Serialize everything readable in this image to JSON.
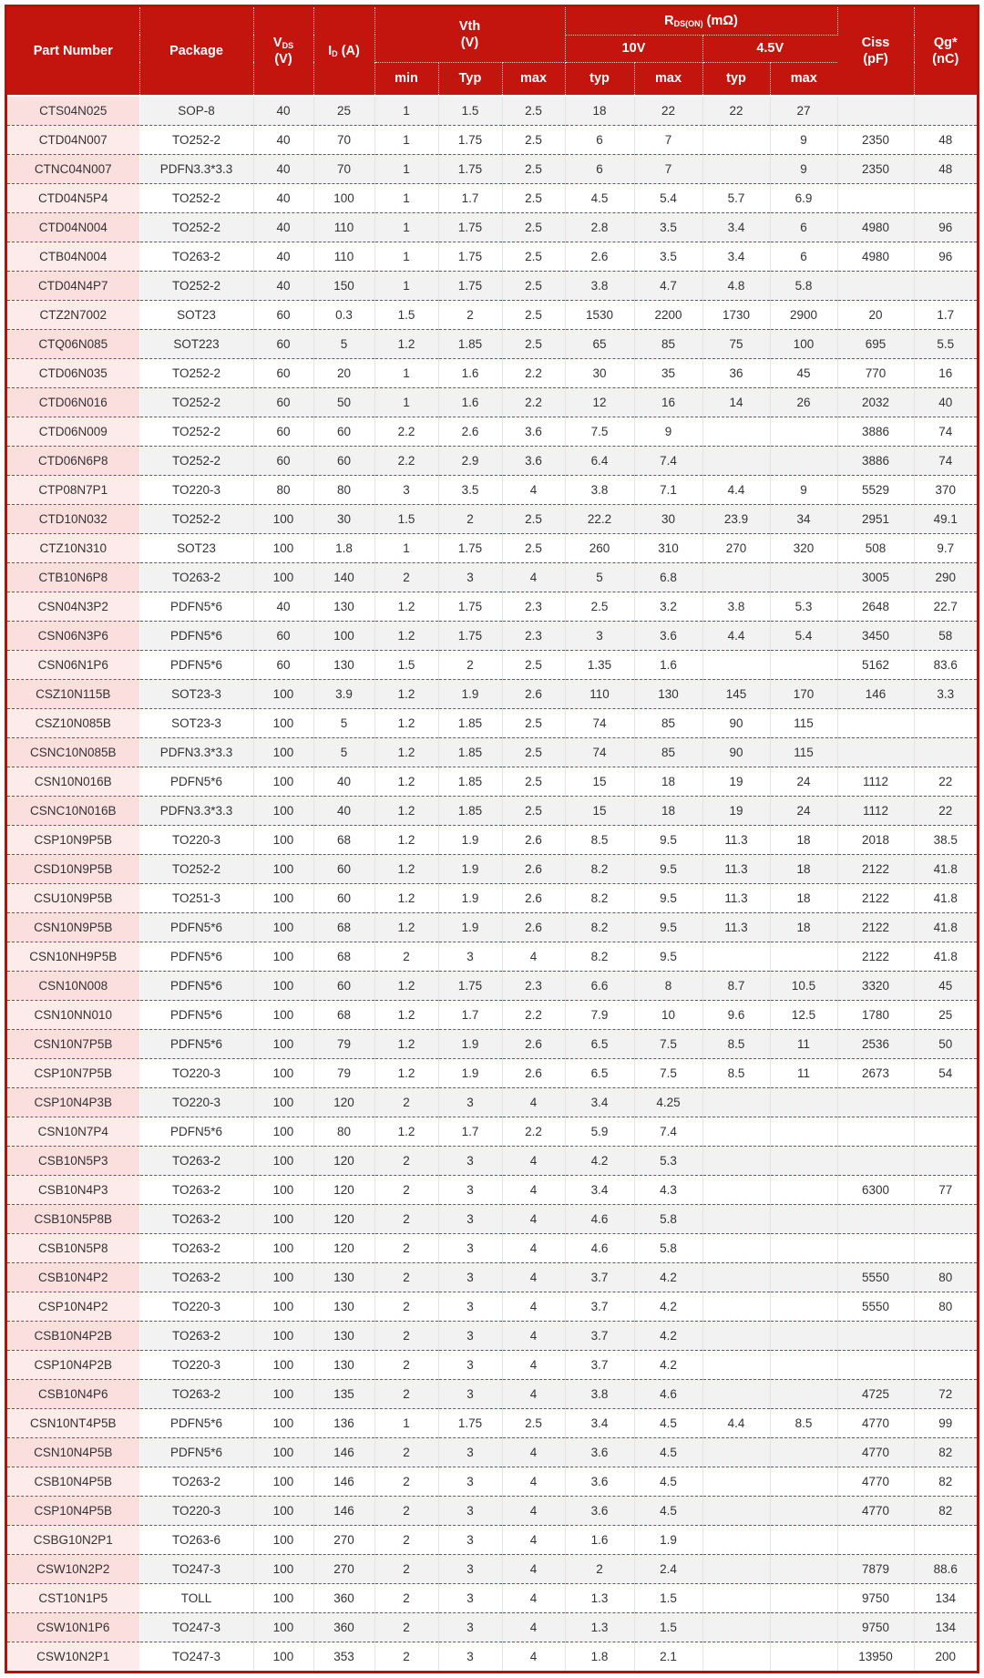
{
  "table": {
    "headers": {
      "part_number": "Part Number",
      "package": "Package",
      "vds_symbol": "V",
      "vds_sub": "DS",
      "vds_unit": "(V)",
      "id_symbol": "I",
      "id_sub": "D",
      "id_unit": " (A)",
      "vth_line1": "Vth",
      "vth_line2": "(V)",
      "rds_symbol": "R",
      "rds_sub": "DS(ON)",
      "rds_unit": " (mΩ)",
      "gate_10v": "10V",
      "gate_45v": "4.5V",
      "sub": [
        "min",
        "Typ",
        "max",
        "typ",
        "max",
        "typ",
        "max"
      ],
      "ciss_line1": "Ciss",
      "ciss_line2": "(pF)",
      "qg_line1": "Qg*",
      "qg_line2": "(nC)"
    },
    "rows": [
      [
        "CTS04N025",
        "SOP-8",
        "40",
        "25",
        "1",
        "1.5",
        "2.5",
        "18",
        "22",
        "22",
        "27",
        "",
        ""
      ],
      [
        "CTD04N007",
        "TO252-2",
        "40",
        "70",
        "1",
        "1.75",
        "2.5",
        "6",
        "7",
        "",
        "9",
        "2350",
        "48"
      ],
      [
        "CTNC04N007",
        "PDFN3.3*3.3",
        "40",
        "70",
        "1",
        "1.75",
        "2.5",
        "6",
        "7",
        "",
        "9",
        "2350",
        "48"
      ],
      [
        "CTD04N5P4",
        "TO252-2",
        "40",
        "100",
        "1",
        "1.7",
        "2.5",
        "4.5",
        "5.4",
        "5.7",
        "6.9",
        "",
        ""
      ],
      [
        "CTD04N004",
        "TO252-2",
        "40",
        "110",
        "1",
        "1.75",
        "2.5",
        "2.8",
        "3.5",
        "3.4",
        "6",
        "4980",
        "96"
      ],
      [
        "CTB04N004",
        "TO263-2",
        "40",
        "110",
        "1",
        "1.75",
        "2.5",
        "2.6",
        "3.5",
        "3.4",
        "6",
        "4980",
        "96"
      ],
      [
        "CTD04N4P7",
        "TO252-2",
        "40",
        "150",
        "1",
        "1.75",
        "2.5",
        "3.8",
        "4.7",
        "4.8",
        "5.8",
        "",
        ""
      ],
      [
        "CTZ2N7002",
        "SOT23",
        "60",
        "0.3",
        "1.5",
        "2",
        "2.5",
        "1530",
        "2200",
        "1730",
        "2900",
        "20",
        "1.7"
      ],
      [
        "CTQ06N085",
        "SOT223",
        "60",
        "5",
        "1.2",
        "1.85",
        "2.5",
        "65",
        "85",
        "75",
        "100",
        "695",
        "5.5"
      ],
      [
        "CTD06N035",
        "TO252-2",
        "60",
        "20",
        "1",
        "1.6",
        "2.2",
        "30",
        "35",
        "36",
        "45",
        "770",
        "16"
      ],
      [
        "CTD06N016",
        "TO252-2",
        "60",
        "50",
        "1",
        "1.6",
        "2.2",
        "12",
        "16",
        "14",
        "26",
        "2032",
        "40"
      ],
      [
        "CTD06N009",
        "TO252-2",
        "60",
        "60",
        "2.2",
        "2.6",
        "3.6",
        "7.5",
        "9",
        "",
        "",
        "3886",
        "74"
      ],
      [
        "CTD06N6P8",
        "TO252-2",
        "60",
        "60",
        "2.2",
        "2.9",
        "3.6",
        "6.4",
        "7.4",
        "",
        "",
        "3886",
        "74"
      ],
      [
        "CTP08N7P1",
        "TO220-3",
        "80",
        "80",
        "3",
        "3.5",
        "4",
        "3.8",
        "7.1",
        "4.4",
        "9",
        "5529",
        "370"
      ],
      [
        "CTD10N032",
        "TO252-2",
        "100",
        "30",
        "1.5",
        "2",
        "2.5",
        "22.2",
        "30",
        "23.9",
        "34",
        "2951",
        "49.1"
      ],
      [
        "CTZ10N310",
        "SOT23",
        "100",
        "1.8",
        "1",
        "1.75",
        "2.5",
        "260",
        "310",
        "270",
        "320",
        "508",
        "9.7"
      ],
      [
        "CTB10N6P8",
        "TO263-2",
        "100",
        "140",
        "2",
        "3",
        "4",
        "5",
        "6.8",
        "",
        "",
        "3005",
        "290"
      ],
      [
        "CSN04N3P2",
        "PDFN5*6",
        "40",
        "130",
        "1.2",
        "1.75",
        "2.3",
        "2.5",
        "3.2",
        "3.8",
        "5.3",
        "2648",
        "22.7"
      ],
      [
        "CSN06N3P6",
        "PDFN5*6",
        "60",
        "100",
        "1.2",
        "1.75",
        "2.3",
        "3",
        "3.6",
        "4.4",
        "5.4",
        "3450",
        "58"
      ],
      [
        "CSN06N1P6",
        "PDFN5*6",
        "60",
        "130",
        "1.5",
        "2",
        "2.5",
        "1.35",
        "1.6",
        "",
        "",
        "5162",
        "83.6"
      ],
      [
        "CSZ10N115B",
        "SOT23-3",
        "100",
        "3.9",
        "1.2",
        "1.9",
        "2.6",
        "110",
        "130",
        "145",
        "170",
        "146",
        "3.3"
      ],
      [
        "CSZ10N085B",
        "SOT23-3",
        "100",
        "5",
        "1.2",
        "1.85",
        "2.5",
        "74",
        "85",
        "90",
        "115",
        "",
        ""
      ],
      [
        "CSNC10N085B",
        "PDFN3.3*3.3",
        "100",
        "5",
        "1.2",
        "1.85",
        "2.5",
        "74",
        "85",
        "90",
        "115",
        "",
        ""
      ],
      [
        "CSN10N016B",
        "PDFN5*6",
        "100",
        "40",
        "1.2",
        "1.85",
        "2.5",
        "15",
        "18",
        "19",
        "24",
        "1112",
        "22"
      ],
      [
        "CSNC10N016B",
        "PDFN3.3*3.3",
        "100",
        "40",
        "1.2",
        "1.85",
        "2.5",
        "15",
        "18",
        "19",
        "24",
        "1112",
        "22"
      ],
      [
        "CSP10N9P5B",
        "TO220-3",
        "100",
        "68",
        "1.2",
        "1.9",
        "2.6",
        "8.5",
        "9.5",
        "11.3",
        "18",
        "2018",
        "38.5"
      ],
      [
        "CSD10N9P5B",
        "TO252-2",
        "100",
        "60",
        "1.2",
        "1.9",
        "2.6",
        "8.2",
        "9.5",
        "11.3",
        "18",
        "2122",
        "41.8"
      ],
      [
        "CSU10N9P5B",
        "TO251-3",
        "100",
        "60",
        "1.2",
        "1.9",
        "2.6",
        "8.2",
        "9.5",
        "11.3",
        "18",
        "2122",
        "41.8"
      ],
      [
        "CSN10N9P5B",
        "PDFN5*6",
        "100",
        "68",
        "1.2",
        "1.9",
        "2.6",
        "8.2",
        "9.5",
        "11.3",
        "18",
        "2122",
        "41.8"
      ],
      [
        "CSN10NH9P5B",
        "PDFN5*6",
        "100",
        "68",
        "2",
        "3",
        "4",
        "8.2",
        "9.5",
        "",
        "",
        "2122",
        "41.8"
      ],
      [
        "CSN10N008",
        "PDFN5*6",
        "100",
        "60",
        "1.2",
        "1.75",
        "2.3",
        "6.6",
        "8",
        "8.7",
        "10.5",
        "3320",
        "45"
      ],
      [
        "CSN10NN010",
        "PDFN5*6",
        "100",
        "68",
        "1.2",
        "1.7",
        "2.2",
        "7.9",
        "10",
        "9.6",
        "12.5",
        "1780",
        "25"
      ],
      [
        "CSN10N7P5B",
        "PDFN5*6",
        "100",
        "79",
        "1.2",
        "1.9",
        "2.6",
        "6.5",
        "7.5",
        "8.5",
        "11",
        "2536",
        "50"
      ],
      [
        "CSP10N7P5B",
        "TO220-3",
        "100",
        "79",
        "1.2",
        "1.9",
        "2.6",
        "6.5",
        "7.5",
        "8.5",
        "11",
        "2673",
        "54"
      ],
      [
        "CSP10N4P3B",
        "TO220-3",
        "100",
        "120",
        "2",
        "3",
        "4",
        "3.4",
        "4.25",
        "",
        "",
        "",
        ""
      ],
      [
        "CSN10N7P4",
        "PDFN5*6",
        "100",
        "80",
        "1.2",
        "1.7",
        "2.2",
        "5.9",
        "7.4",
        "",
        "",
        "",
        ""
      ],
      [
        "CSB10N5P3",
        "TO263-2",
        "100",
        "120",
        "2",
        "3",
        "4",
        "4.2",
        "5.3",
        "",
        "",
        "",
        ""
      ],
      [
        "CSB10N4P3",
        "TO263-2",
        "100",
        "120",
        "2",
        "3",
        "4",
        "3.4",
        "4.3",
        "",
        "",
        "6300",
        "77"
      ],
      [
        "CSB10N5P8B",
        "TO263-2",
        "100",
        "120",
        "2",
        "3",
        "4",
        "4.6",
        "5.8",
        "",
        "",
        "",
        ""
      ],
      [
        "CSB10N5P8",
        "TO263-2",
        "100",
        "120",
        "2",
        "3",
        "4",
        "4.6",
        "5.8",
        "",
        "",
        "",
        ""
      ],
      [
        "CSB10N4P2",
        "TO263-2",
        "100",
        "130",
        "2",
        "3",
        "4",
        "3.7",
        "4.2",
        "",
        "",
        "5550",
        "80"
      ],
      [
        "CSP10N4P2",
        "TO220-3",
        "100",
        "130",
        "2",
        "3",
        "4",
        "3.7",
        "4.2",
        "",
        "",
        "5550",
        "80"
      ],
      [
        "CSB10N4P2B",
        "TO263-2",
        "100",
        "130",
        "2",
        "3",
        "4",
        "3.7",
        "4.2",
        "",
        "",
        "",
        ""
      ],
      [
        "CSP10N4P2B",
        "TO220-3",
        "100",
        "130",
        "2",
        "3",
        "4",
        "3.7",
        "4.2",
        "",
        "",
        "",
        ""
      ],
      [
        "CSB10N4P6",
        "TO263-2",
        "100",
        "135",
        "2",
        "3",
        "4",
        "3.8",
        "4.6",
        "",
        "",
        "4725",
        "72"
      ],
      [
        "CSN10NT4P5B",
        "PDFN5*6",
        "100",
        "136",
        "1",
        "1.75",
        "2.5",
        "3.4",
        "4.5",
        "4.4",
        "8.5",
        "4770",
        "99"
      ],
      [
        "CSN10N4P5B",
        "PDFN5*6",
        "100",
        "146",
        "2",
        "3",
        "4",
        "3.6",
        "4.5",
        "",
        "",
        "4770",
        "82"
      ],
      [
        "CSB10N4P5B",
        "TO263-2",
        "100",
        "146",
        "2",
        "3",
        "4",
        "3.6",
        "4.5",
        "",
        "",
        "4770",
        "82"
      ],
      [
        "CSP10N4P5B",
        "TO220-3",
        "100",
        "146",
        "2",
        "3",
        "4",
        "3.6",
        "4.5",
        "",
        "",
        "4770",
        "82"
      ],
      [
        "CSBG10N2P1",
        "TO263-6",
        "100",
        "270",
        "2",
        "3",
        "4",
        "1.6",
        "1.9",
        "",
        "",
        "",
        ""
      ],
      [
        "CSW10N2P2",
        "TO247-3",
        "100",
        "270",
        "2",
        "3",
        "4",
        "2",
        "2.4",
        "",
        "",
        "7879",
        "88.6"
      ],
      [
        "CST10N1P5",
        "TOLL",
        "100",
        "360",
        "2",
        "3",
        "4",
        "1.3",
        "1.5",
        "",
        "",
        "9750",
        "134"
      ],
      [
        "CSW10N1P6",
        "TO247-3",
        "100",
        "360",
        "2",
        "3",
        "4",
        "1.3",
        "1.5",
        "",
        "",
        "9750",
        "134"
      ],
      [
        "CSW10N2P1",
        "TO247-3",
        "100",
        "353",
        "2",
        "3",
        "4",
        "1.8",
        "2.1",
        "",
        "",
        "13950",
        "200"
      ]
    ]
  },
  "colors": {
    "header_red": "#c4140e",
    "outer_border_red": "#b2120a",
    "row_stripe_gray": "#f2f2f2",
    "part_number_pink": "#fbdfdf",
    "row_divider_red": "#e0251a",
    "cell_divider_gray": "#e4e4e4"
  }
}
